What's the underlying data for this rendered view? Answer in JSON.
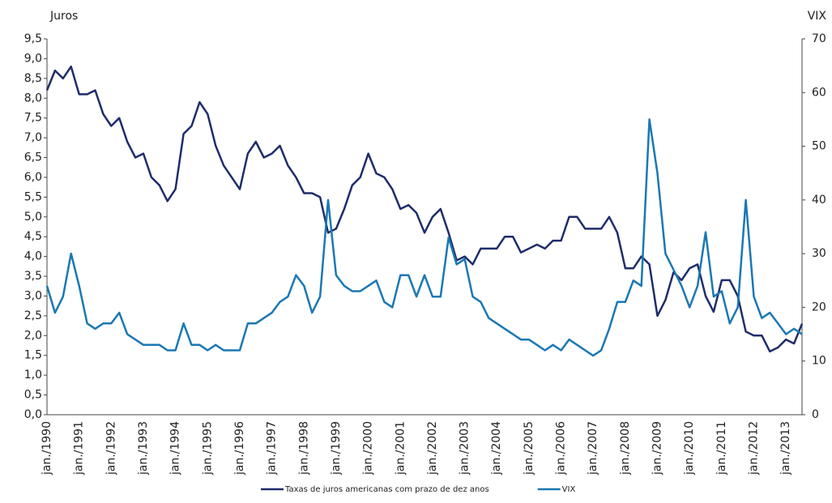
{
  "chart_data": {
    "type": "line",
    "y_label": "Juros",
    "y2_label": "VIX",
    "categories": [
      "jan./1990",
      null,
      null,
      null,
      "jan./1991",
      null,
      null,
      null,
      "jan./1992",
      null,
      null,
      null,
      "jan./1993",
      null,
      null,
      null,
      "jan./1994",
      null,
      null,
      null,
      "jan./1995",
      null,
      null,
      null,
      "jan./1996",
      null,
      null,
      null,
      "jan./1997",
      null,
      null,
      null,
      "jan./1998",
      null,
      null,
      null,
      "jan./1999",
      null,
      null,
      null,
      "jan./2000",
      null,
      null,
      null,
      "jan./2001",
      null,
      null,
      null,
      "jan./2002",
      null,
      null,
      null,
      "jan./2003",
      null,
      null,
      null,
      "jan./2004",
      null,
      null,
      null,
      "jan./2005",
      null,
      null,
      null,
      "jan./2006",
      null,
      null,
      null,
      "jan./2007",
      null,
      null,
      null,
      "jan./2008",
      null,
      null,
      null,
      "jan./2009",
      null,
      null,
      null,
      "jan./2010",
      null,
      null,
      null,
      "jan./2011",
      null,
      null,
      null,
      "jan./2012",
      null,
      null,
      null,
      "jan./2013",
      null,
      null
    ],
    "series": [
      {
        "name": "Taxas de juros americanas com prazo de dez anos",
        "color": "#1f2d6b",
        "values": [
          8.2,
          8.7,
          8.5,
          8.8,
          8.1,
          8.1,
          8.2,
          7.6,
          7.3,
          7.5,
          6.9,
          6.5,
          6.6,
          6.0,
          5.8,
          5.4,
          5.7,
          7.1,
          7.3,
          7.9,
          7.6,
          6.8,
          6.3,
          6.0,
          5.7,
          6.6,
          6.9,
          6.5,
          6.6,
          6.8,
          6.3,
          6.0,
          5.6,
          5.6,
          5.5,
          4.6,
          4.7,
          5.2,
          5.8,
          6.0,
          6.6,
          6.1,
          6.0,
          5.7,
          5.2,
          5.3,
          5.1,
          4.6,
          5.0,
          5.2,
          4.6,
          3.9,
          4.0,
          3.8,
          4.2,
          4.2,
          4.2,
          4.5,
          4.5,
          4.1,
          4.2,
          4.3,
          4.2,
          4.4,
          4.4,
          5.0,
          5.0,
          4.7,
          4.7,
          4.7,
          5.0,
          4.6,
          3.7,
          3.7,
          4.0,
          3.8,
          2.5,
          2.9,
          3.6,
          3.4,
          3.7,
          3.8,
          3.0,
          2.6,
          3.4,
          3.4,
          3.0,
          2.1,
          2.0,
          2.0,
          1.6,
          1.7,
          1.9,
          1.8,
          2.3
        ]
      },
      {
        "name": "VIX",
        "color": "#1a78b4",
        "axis": "y2",
        "values": [
          24,
          19,
          22,
          30,
          24,
          17,
          16,
          17,
          17,
          19,
          15,
          14,
          13,
          13,
          13,
          12,
          12,
          17,
          13,
          13,
          12,
          13,
          12,
          12,
          12,
          17,
          17,
          18,
          19,
          21,
          22,
          26,
          24,
          19,
          22,
          40,
          26,
          24,
          23,
          23,
          24,
          25,
          21,
          20,
          26,
          26,
          22,
          26,
          22,
          22,
          33,
          28,
          29,
          22,
          21,
          18,
          17,
          16,
          15,
          14,
          14,
          13,
          12,
          13,
          12,
          14,
          13,
          12,
          11,
          12,
          16,
          21,
          21,
          25,
          24,
          55,
          45,
          30,
          27,
          24,
          20,
          24,
          34,
          22,
          23,
          17,
          20,
          40,
          22,
          18,
          19,
          17,
          15,
          16,
          15
        ]
      }
    ],
    "ylim": [
      0,
      9.5
    ],
    "yticks": [
      {
        "value": 0,
        "label": "0,0"
      },
      {
        "value": 0.5,
        "label": "0,5"
      },
      {
        "value": 1,
        "label": "1,0"
      },
      {
        "value": 1.5,
        "label": "1,5"
      },
      {
        "value": 2,
        "label": "2,0"
      },
      {
        "value": 2.5,
        "label": "2,5"
      },
      {
        "value": 3,
        "label": "3,0"
      },
      {
        "value": 3.5,
        "label": "3,5"
      },
      {
        "value": 4,
        "label": "4,0"
      },
      {
        "value": 4.5,
        "label": "4,5"
      },
      {
        "value": 5,
        "label": "5,0"
      },
      {
        "value": 5.5,
        "label": "5,5"
      },
      {
        "value": 6,
        "label": "6,0"
      },
      {
        "value": 6.5,
        "label": "6,5"
      },
      {
        "value": 7,
        "label": "7,0"
      },
      {
        "value": 7.5,
        "label": "7,5"
      },
      {
        "value": 8,
        "label": "8,0"
      },
      {
        "value": 8.5,
        "label": "8,5"
      },
      {
        "value": 9,
        "label": "9,0"
      },
      {
        "value": 9.5,
        "label": "9,5"
      }
    ],
    "y2lim": [
      0,
      70
    ],
    "y2ticks": [
      0,
      10,
      20,
      30,
      40,
      50,
      60,
      70
    ],
    "legend": "bottom"
  }
}
